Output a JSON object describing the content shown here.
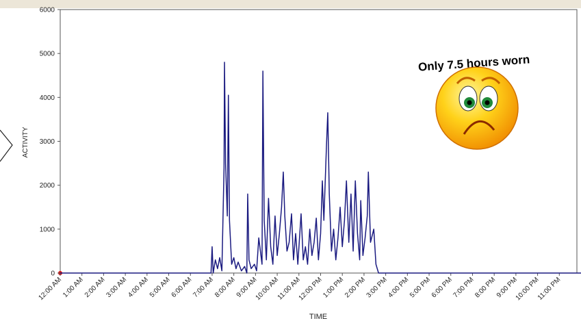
{
  "chart_data": {
    "type": "line",
    "annotation": "Only 7.5 hours worn",
    "xlabel": "TIME",
    "ylabel": "ACTIVITY",
    "xlim": [
      0,
      24
    ],
    "ylim": [
      0,
      6000
    ],
    "yticks": [
      0,
      1000,
      2000,
      3000,
      4000,
      5000,
      6000
    ],
    "xticks": [
      {
        "value": 0,
        "label": "12:00 AM"
      },
      {
        "value": 1,
        "label": "1:00 AM"
      },
      {
        "value": 2,
        "label": "2:00 AM"
      },
      {
        "value": 3,
        "label": "3:00 AM"
      },
      {
        "value": 4,
        "label": "4:00 AM"
      },
      {
        "value": 5,
        "label": "5:00 AM"
      },
      {
        "value": 6,
        "label": "6:00 AM"
      },
      {
        "value": 7,
        "label": "7:00 AM"
      },
      {
        "value": 8,
        "label": "8:00 AM"
      },
      {
        "value": 9,
        "label": "9:00 AM"
      },
      {
        "value": 10,
        "label": "10:00 AM"
      },
      {
        "value": 11,
        "label": "11:00 AM"
      },
      {
        "value": 12,
        "label": "12:00 PM"
      },
      {
        "value": 13,
        "label": "1:00 PM"
      },
      {
        "value": 14,
        "label": "2:00 PM"
      },
      {
        "value": 15,
        "label": "3:00 PM"
      },
      {
        "value": 16,
        "label": "4:00 PM"
      },
      {
        "value": 17,
        "label": "5:00 PM"
      },
      {
        "value": 18,
        "label": "6:00 PM"
      },
      {
        "value": 19,
        "label": "7:00 PM"
      },
      {
        "value": 20,
        "label": "8:00 PM"
      },
      {
        "value": 21,
        "label": "9:00 PM"
      },
      {
        "value": 22,
        "label": "10:00 PM"
      },
      {
        "value": 23,
        "label": "11:00 PM"
      }
    ],
    "series": [
      {
        "color": "#1a1a80",
        "x": [
          0,
          6.95,
          7.0,
          7.05,
          7.15,
          7.25,
          7.35,
          7.45,
          7.55,
          7.57,
          7.62,
          7.7,
          7.75,
          7.8,
          7.9,
          8.0,
          8.1,
          8.2,
          8.35,
          8.5,
          8.6,
          8.64,
          8.7,
          8.8,
          8.95,
          9.05,
          9.15,
          9.3,
          9.34,
          9.4,
          9.5,
          9.6,
          9.7,
          9.8,
          9.9,
          10.0,
          10.1,
          10.2,
          10.28,
          10.35,
          10.45,
          10.55,
          10.66,
          10.75,
          10.85,
          10.95,
          11.1,
          11.2,
          11.3,
          11.4,
          11.5,
          11.6,
          11.7,
          11.8,
          11.9,
          12.0,
          12.08,
          12.15,
          12.27,
          12.33,
          12.4,
          12.5,
          12.6,
          12.7,
          12.8,
          12.9,
          13.0,
          13.1,
          13.19,
          13.3,
          13.4,
          13.5,
          13.6,
          13.7,
          13.8,
          13.85,
          13.95,
          14.05,
          14.15,
          14.2,
          14.3,
          14.45,
          14.55,
          14.67,
          24
        ],
        "values": [
          0,
          0,
          600,
          0,
          300,
          100,
          350,
          50,
          2400,
          4800,
          2500,
          1300,
          4050,
          1200,
          200,
          350,
          100,
          250,
          50,
          150,
          0,
          1800,
          300,
          100,
          200,
          50,
          800,
          200,
          4600,
          1200,
          300,
          1700,
          600,
          200,
          1300,
          400,
          900,
          1500,
          2300,
          1300,
          500,
          700,
          1350,
          300,
          900,
          200,
          1350,
          300,
          600,
          200,
          1000,
          400,
          700,
          1250,
          300,
          900,
          2100,
          1200,
          2900,
          3650,
          1800,
          500,
          1000,
          300,
          800,
          1500,
          600,
          1200,
          2100,
          700,
          1800,
          500,
          2100,
          900,
          300,
          1650,
          400,
          800,
          1300,
          2300,
          700,
          1000,
          200,
          0,
          0
        ]
      }
    ]
  }
}
